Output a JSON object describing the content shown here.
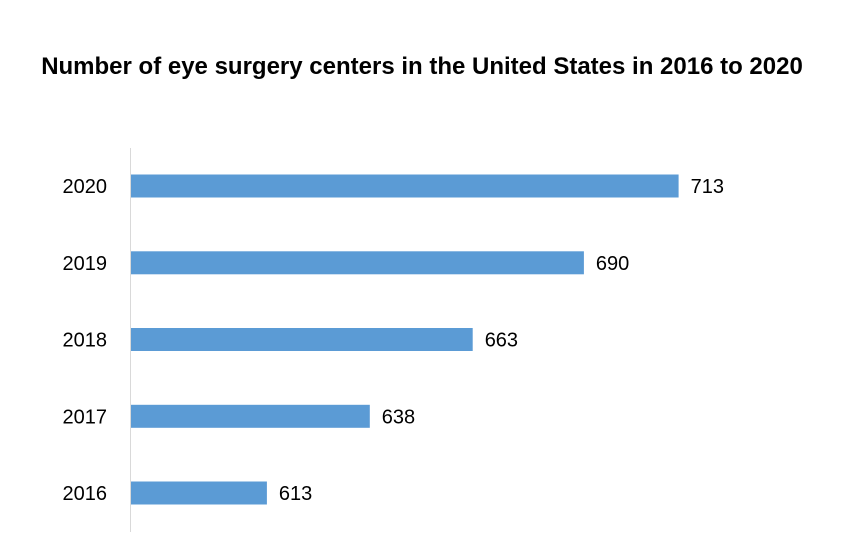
{
  "chart_data": {
    "type": "bar",
    "orientation": "horizontal",
    "title": "Number of eye surgery centers in the United States in 2016 to 2020",
    "categories": [
      "2016",
      "2017",
      "2018",
      "2019",
      "2020"
    ],
    "series": [
      {
        "values": [
          613,
          638,
          663,
          690,
          713
        ],
        "color": "#5b9bd5"
      }
    ],
    "xlim": [
      580,
      725
    ],
    "grid": false,
    "legend": "none",
    "data_labels": true
  }
}
